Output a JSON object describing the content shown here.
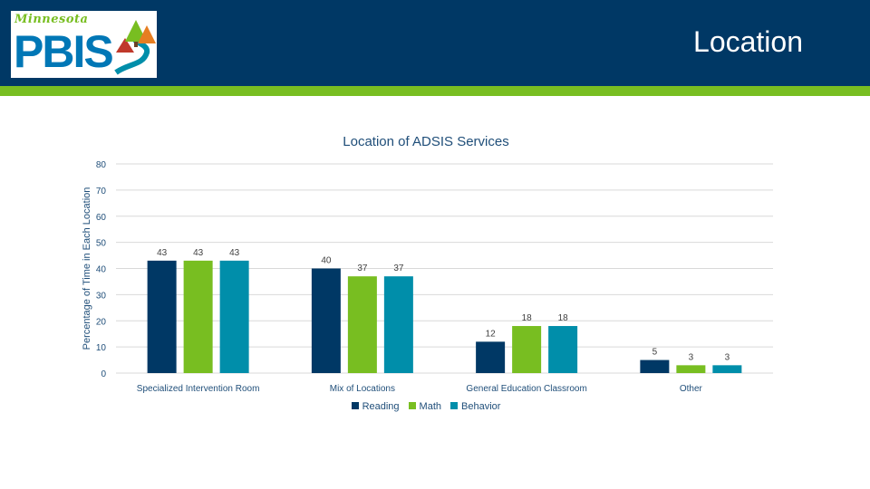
{
  "header": {
    "title": "Location",
    "logo": {
      "script_text": "Minnesota",
      "word": "PBIS"
    }
  },
  "colors": {
    "header_bg": "#003865",
    "accent_green": "#78be21",
    "reading": "#003865",
    "math": "#78be21",
    "behavior": "#008eaa"
  },
  "chart_data": {
    "type": "bar",
    "title": "Location of ADSIS Services",
    "xlabel": "",
    "ylabel": "Percentage of Time in Each Location",
    "ylim": [
      0,
      80
    ],
    "yticks": [
      0,
      10,
      20,
      30,
      40,
      50,
      60,
      70,
      80
    ],
    "grid": true,
    "legend_position": "bottom",
    "categories": [
      "Specialized Intervention Room",
      "Mix of Locations",
      "General Education Classroom",
      "Other"
    ],
    "series": [
      {
        "name": "Reading",
        "color": "#003865",
        "values": [
          43,
          40,
          12,
          5
        ]
      },
      {
        "name": "Math",
        "color": "#78be21",
        "values": [
          43,
          37,
          18,
          3
        ]
      },
      {
        "name": "Behavior",
        "color": "#008eaa",
        "values": [
          43,
          37,
          18,
          3
        ]
      }
    ]
  }
}
